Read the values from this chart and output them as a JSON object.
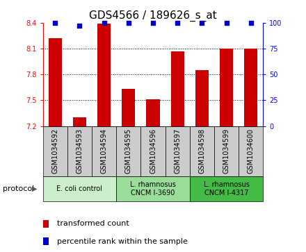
{
  "title": "GDS4566 / 189626_s_at",
  "samples": [
    "GSM1034592",
    "GSM1034593",
    "GSM1034594",
    "GSM1034595",
    "GSM1034596",
    "GSM1034597",
    "GSM1034598",
    "GSM1034599",
    "GSM1034600"
  ],
  "transformed_counts": [
    8.22,
    7.3,
    8.39,
    7.63,
    7.51,
    8.07,
    7.85,
    8.1,
    8.1
  ],
  "percentile_ranks": [
    100,
    97,
    100,
    100,
    100,
    100,
    100,
    100,
    100
  ],
  "ylim": [
    7.2,
    8.4
  ],
  "yticks": [
    7.2,
    7.5,
    7.8,
    8.1,
    8.4
  ],
  "right_yticks": [
    0,
    25,
    50,
    75,
    100
  ],
  "right_ylim": [
    0,
    100
  ],
  "bar_color": "#cc0000",
  "dot_color": "#0000cc",
  "protocols": [
    {
      "label": "E. coli control",
      "start": 0,
      "end": 3,
      "color": "#cceecc"
    },
    {
      "label": "L. rhamnosus\nCNCM I-3690",
      "start": 3,
      "end": 6,
      "color": "#99dd99"
    },
    {
      "label": "L. rhamnosus\nCNCM I-4317",
      "start": 6,
      "end": 9,
      "color": "#44bb44"
    }
  ],
  "legend_bar_label": "transformed count",
  "legend_dot_label": "percentile rank within the sample",
  "protocol_label": "protocol",
  "sample_box_color": "#cccccc",
  "title_fontsize": 11,
  "tick_fontsize": 7,
  "label_fontsize": 8
}
